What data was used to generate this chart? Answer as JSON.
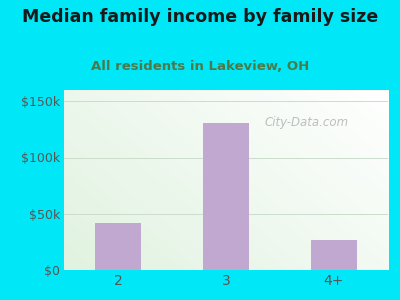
{
  "title": "Median family income by family size",
  "subtitle": "All residents in Lakeview, OH",
  "categories": [
    "2",
    "3",
    "4+"
  ],
  "values": [
    42000,
    131000,
    27000
  ],
  "bar_color": "#c0a8d0",
  "ylim": [
    0,
    160000
  ],
  "yticks": [
    0,
    50000,
    100000,
    150000
  ],
  "ytick_labels": [
    "$0",
    "$50k",
    "$100k",
    "$150k"
  ],
  "background_outer": "#00e8f8",
  "title_color": "#1a1a1a",
  "subtitle_color": "#4a7a4a",
  "tick_color": "#555555",
  "watermark": "City-Data.com",
  "grid_color": "#ccddcc"
}
